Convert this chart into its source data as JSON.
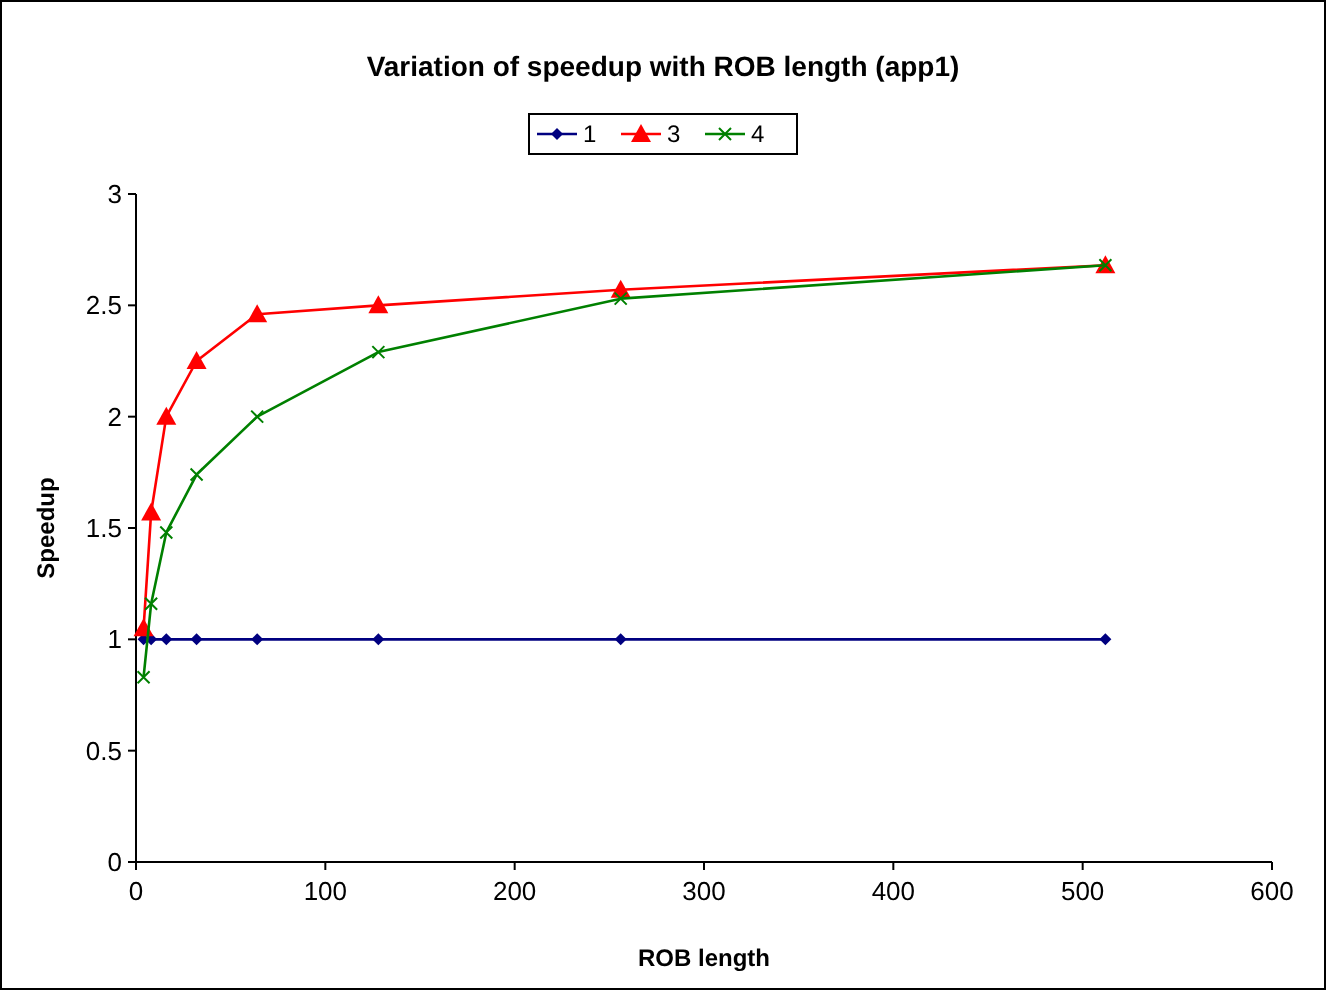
{
  "chart_data": {
    "type": "line",
    "title": "Variation of speedup with ROB length (app1)",
    "xlabel": "ROB length",
    "ylabel": "Speedup",
    "x": [
      4,
      8,
      16,
      32,
      64,
      128,
      256,
      512
    ],
    "series": [
      {
        "name": "1",
        "color": "#000080",
        "marker": "diamond",
        "values": [
          1,
          1,
          1,
          1,
          1,
          1,
          1,
          1
        ]
      },
      {
        "name": "3",
        "color": "#ff0000",
        "marker": "triangle",
        "values": [
          1.05,
          1.57,
          2.0,
          2.25,
          2.46,
          2.5,
          2.57,
          2.68
        ]
      },
      {
        "name": "4",
        "color": "#008000",
        "marker": "cross",
        "values": [
          0.83,
          1.16,
          1.48,
          1.74,
          2.0,
          2.29,
          2.53,
          2.68
        ]
      }
    ],
    "xlim": [
      0,
      600
    ],
    "xticks": [
      0,
      100,
      200,
      300,
      400,
      500,
      600
    ],
    "ylim": [
      0,
      3
    ],
    "yticks": [
      0,
      0.5,
      1,
      1.5,
      2,
      2.5,
      3
    ],
    "grid": false,
    "legend": "top"
  }
}
